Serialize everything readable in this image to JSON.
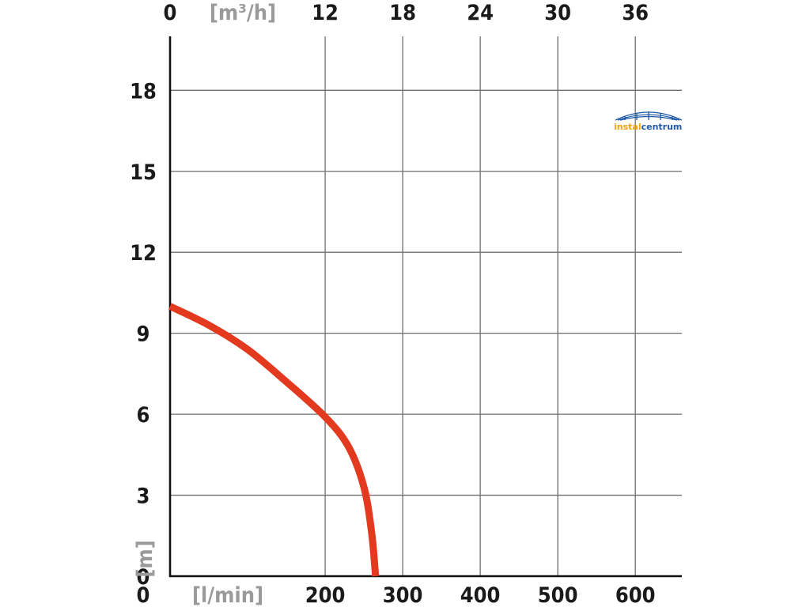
{
  "chart_data": {
    "type": "line",
    "x_unit": "[l/min]",
    "x2_unit": "[m³/h]",
    "y_unit": "[m]",
    "xlim": [
      0,
      660
    ],
    "ylim": [
      0,
      20
    ],
    "grid": true,
    "x_ticks": [
      0,
      200,
      300,
      400,
      500,
      600
    ],
    "x_tick_labels": [
      "0",
      "200",
      "300",
      "400",
      "500",
      "600"
    ],
    "x2_ticks": [
      0,
      12,
      18,
      24,
      30,
      36
    ],
    "x2_tick_labels": [
      "0",
      "12",
      "18",
      "24",
      "30",
      "36"
    ],
    "y_ticks": [
      0,
      3,
      6,
      9,
      12,
      15,
      18
    ],
    "y_tick_labels": [
      "0",
      "3",
      "6",
      "9",
      "12",
      "15",
      "18"
    ],
    "series": [
      {
        "color": "#e2391f",
        "x": [
          0,
          50,
          100,
          150,
          200,
          230,
          250,
          260,
          265
        ],
        "y": [
          10.0,
          9.3,
          8.4,
          7.2,
          5.9,
          4.8,
          3.3,
          1.6,
          0
        ]
      }
    ]
  },
  "logo": {
    "part1": "instal",
    "part2": "centrum",
    "color1": "#f0a30a",
    "color2": "#1f5aa6"
  }
}
